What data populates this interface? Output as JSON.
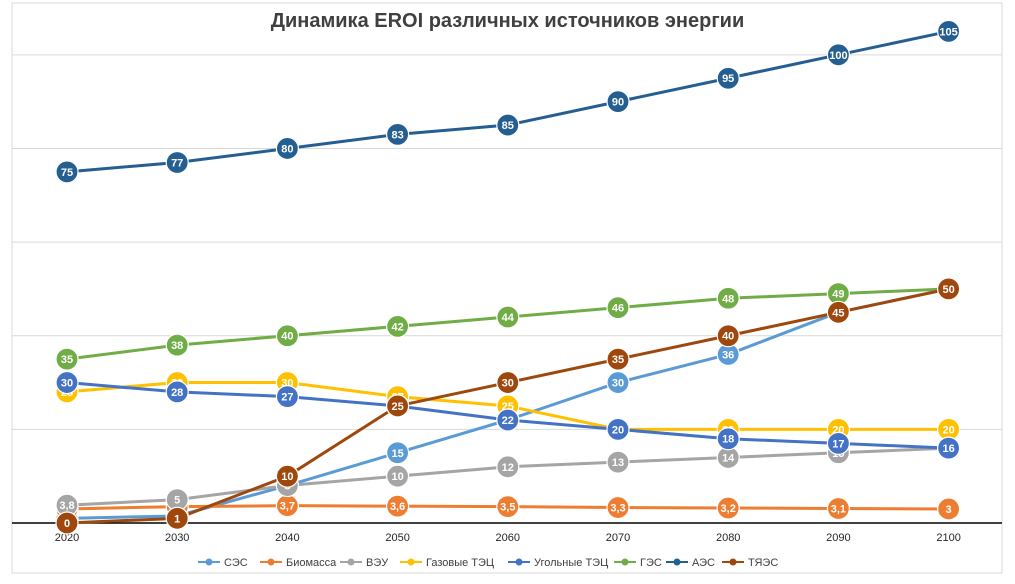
{
  "chart_data": {
    "type": "line",
    "title": "Динамика EROI различных источников энергии",
    "categories": [
      "2020",
      "2030",
      "2040",
      "2050",
      "2060",
      "2070",
      "2080",
      "2090",
      "2100"
    ],
    "ylim": [
      0,
      110
    ],
    "grid": true,
    "legend_position": "bottom",
    "series": [
      {
        "name": "СЭС",
        "color": "#5B9BD5",
        "values": [
          1,
          1.5,
          8,
          15,
          22,
          30,
          36,
          45,
          50
        ],
        "labels": [
          "1",
          "1,5",
          "8",
          "15",
          "22",
          "30",
          "36",
          "",
          ""
        ]
      },
      {
        "name": "Биомасса",
        "color": "#ED7D31",
        "values": [
          3,
          3.5,
          3.7,
          3.6,
          3.5,
          3.3,
          3.2,
          3.1,
          3
        ],
        "labels": [
          "3",
          "3,5",
          "3,7",
          "3,6",
          "3,5",
          "3,3",
          "3,2",
          "3,1",
          "3"
        ]
      },
      {
        "name": "ВЭУ",
        "color": "#A5A5A5",
        "values": [
          3.8,
          5,
          8,
          10,
          12,
          13,
          14,
          15,
          16
        ],
        "labels": [
          "3,8",
          "5",
          "8",
          "10",
          "12",
          "13",
          "14",
          "15",
          "16"
        ]
      },
      {
        "name": "Газовые ТЭЦ",
        "color": "#FFC000",
        "values": [
          28,
          30,
          30,
          27,
          25,
          20,
          20,
          20,
          20
        ],
        "labels": [
          "28",
          "30",
          "30",
          "27",
          "25",
          "20",
          "20",
          "20",
          "20"
        ]
      },
      {
        "name": "Угольные ТЭЦ",
        "color": "#4472C4",
        "values": [
          30,
          28,
          27,
          25,
          22,
          20,
          18,
          17,
          16
        ],
        "labels": [
          "30",
          "28",
          "27",
          "25",
          "22",
          "20",
          "18",
          "17",
          "16"
        ]
      },
      {
        "name": "ГЭС",
        "color": "#70AD47",
        "values": [
          35,
          38,
          40,
          42,
          44,
          46,
          48,
          49,
          50
        ],
        "labels": [
          "35",
          "38",
          "40",
          "42",
          "44",
          "46",
          "48",
          "49",
          "50"
        ]
      },
      {
        "name": "АЭС",
        "color": "#255E91",
        "values": [
          75,
          77,
          80,
          83,
          85,
          90,
          95,
          100,
          105
        ],
        "labels": [
          "75",
          "77",
          "80",
          "83",
          "85",
          "90",
          "95",
          "100",
          "105"
        ]
      },
      {
        "name": "ТЯЭС",
        "color": "#9E480E",
        "values": [
          0,
          1,
          10,
          25,
          30,
          35,
          40,
          45,
          50
        ],
        "labels": [
          "0",
          "1",
          "10",
          "25",
          "30",
          "35",
          "40",
          "45",
          "50"
        ]
      }
    ]
  }
}
